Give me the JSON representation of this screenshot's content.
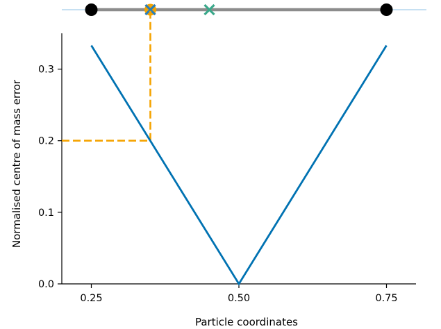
{
  "chart_data": {
    "type": "line",
    "xlabel": "Particle coordinates",
    "ylabel": "Normalised centre of mass error",
    "xlim": [
      0.2,
      0.8
    ],
    "ylim": [
      0.0,
      0.35
    ],
    "xticks": [
      0.25,
      0.5,
      0.75
    ],
    "xtick_labels": [
      "0.25",
      "0.50",
      "0.75"
    ],
    "yticks": [
      0.0,
      0.1,
      0.2,
      0.3
    ],
    "ytick_labels": [
      "0.0",
      "0.1",
      "0.2",
      "0.3"
    ],
    "grid": false,
    "series": [
      {
        "color": "#0072b2",
        "x": [
          0.25,
          0.5,
          0.75
        ],
        "y": [
          0.333,
          0.0,
          0.333
        ]
      }
    ],
    "highlight": {
      "color": "#f5a300",
      "x": 0.35,
      "y": 0.2
    },
    "particle_strip": {
      "segment": [
        0.25,
        0.75
      ],
      "segment_color": "#8c8c8c",
      "baseline_color": "#8ec1e6",
      "endpoints": [
        0.25,
        0.75
      ],
      "endpoint_color": "#000000",
      "markers": [
        {
          "x": 0.35,
          "shape": "circle",
          "color": "#f5a300"
        },
        {
          "x": 0.35,
          "shape": "x",
          "color": "#2a7fb8"
        },
        {
          "x": 0.45,
          "shape": "x",
          "color": "#3aa88a"
        }
      ]
    }
  }
}
